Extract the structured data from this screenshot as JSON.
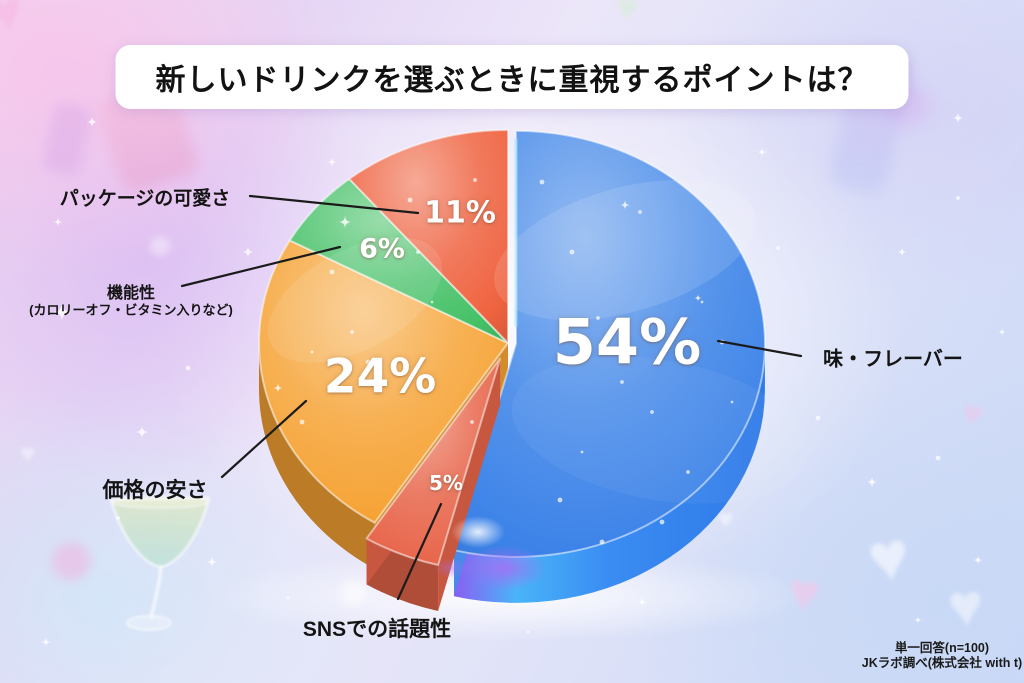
{
  "chart_data": {
    "type": "pie",
    "title": "新しいドリンクを選ぶときに重視するポイントは？",
    "style": "3d-glossy",
    "start_angle_deg": 0,
    "direction": "clockwise",
    "slices": [
      {
        "key": "taste-flavor",
        "name": "味・フレーバー",
        "value": 54,
        "pct_label": "54%",
        "color": "#3b82e8",
        "exploded": true
      },
      {
        "key": "sns-buzz",
        "name": "SNSでの話題性",
        "value": 5,
        "pct_label": "5%",
        "color": "#e8654a",
        "exploded": true
      },
      {
        "key": "price",
        "name": "価格の安さ",
        "value": 24,
        "pct_label": "24%",
        "color": "#f6a233",
        "exploded": false
      },
      {
        "key": "functionality",
        "name": "機能性",
        "sub_label": "(カロリーオフ・ビタミン入りなど)",
        "value": 6,
        "pct_label": "6%",
        "color": "#45c167",
        "exploded": false
      },
      {
        "key": "packaging",
        "name": "パッケージの可愛さ",
        "value": 11,
        "pct_label": "11%",
        "color": "#ef6340",
        "exploded": false
      }
    ]
  },
  "footer": {
    "line1": "単一回答(n=100)",
    "line2": "JKラボ調べ(株式会社 with t)"
  },
  "icons": {
    "heart": "♥"
  }
}
